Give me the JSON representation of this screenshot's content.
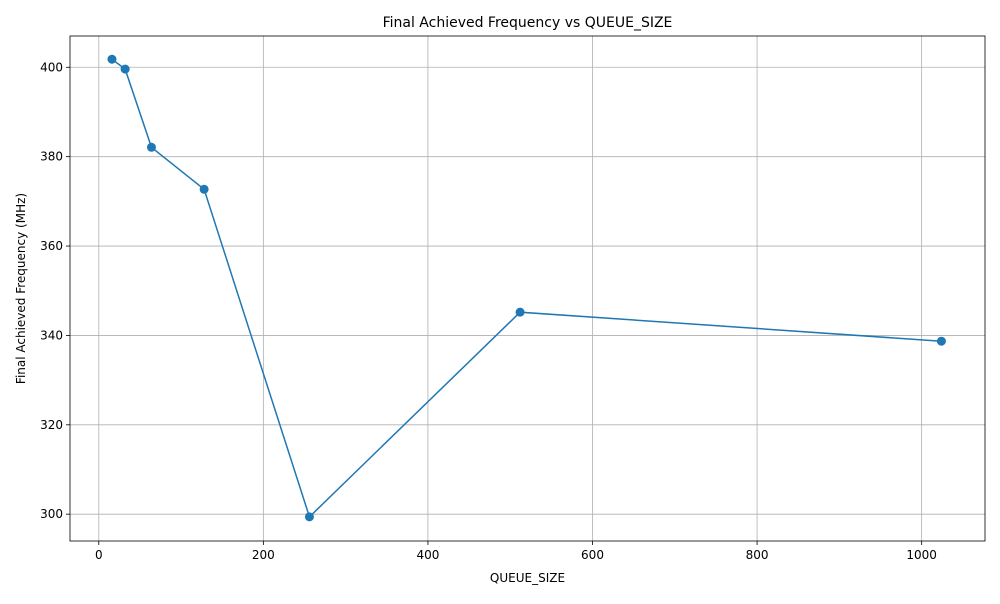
{
  "chart_data": {
    "type": "line",
    "title": "Final Achieved Frequency vs QUEUE_SIZE",
    "xlabel": "QUEUE_SIZE",
    "ylabel": "Final Achieved Frequency (MHz)",
    "xlim": [
      -35,
      1077
    ],
    "ylim": [
      294,
      407
    ],
    "x_ticks": [
      0,
      200,
      400,
      600,
      800,
      1000
    ],
    "y_ticks": [
      300,
      320,
      340,
      360,
      380,
      400
    ],
    "grid": true,
    "series": [
      {
        "color": "#1f77b4",
        "marker": "circle",
        "x": [
          16,
          32,
          64,
          128,
          256,
          512,
          1024
        ],
        "y": [
          401.8,
          399.6,
          382.1,
          372.7,
          299.4,
          345.2,
          338.7
        ]
      }
    ]
  }
}
